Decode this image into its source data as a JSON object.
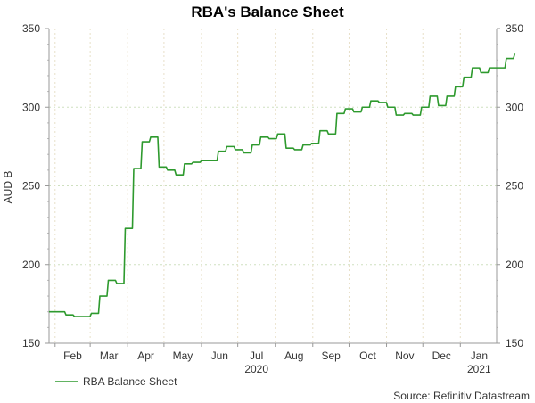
{
  "chart_data": {
    "type": "line",
    "title": "RBA's Balance Sheet",
    "ylabel": "AUD B",
    "xlabel": "",
    "ylim": [
      150,
      350
    ],
    "yticks": [
      150,
      200,
      250,
      300,
      350
    ],
    "x_range": [
      "2020-01-27",
      "2021-01-31"
    ],
    "month_labels": [
      {
        "label": "Feb",
        "start": "2020-02-01"
      },
      {
        "label": "Mar",
        "start": "2020-03-01"
      },
      {
        "label": "Apr",
        "start": "2020-04-01"
      },
      {
        "label": "May",
        "start": "2020-05-01"
      },
      {
        "label": "Jun",
        "start": "2020-06-01"
      },
      {
        "label": "Jul",
        "start": "2020-07-01"
      },
      {
        "label": "Aug",
        "start": "2020-08-01"
      },
      {
        "label": "Sep",
        "start": "2020-09-01"
      },
      {
        "label": "Oct",
        "start": "2020-10-01"
      },
      {
        "label": "Nov",
        "start": "2020-11-01"
      },
      {
        "label": "Dec",
        "start": "2020-12-01"
      },
      {
        "label": "Jan",
        "start": "2021-01-01"
      }
    ],
    "year_labels": [
      {
        "label": "2020",
        "month": "Jul"
      },
      {
        "label": "2021",
        "month": "Jan"
      }
    ],
    "grid": true,
    "series": [
      {
        "name": "RBA Balance Sheet",
        "color": "#2e9a2e",
        "start_date": "2020-01-27",
        "interval_days": 7,
        "values": [
          170,
          170,
          168,
          167,
          167,
          169,
          180,
          190,
          188,
          223,
          261,
          278,
          281,
          262,
          260,
          257,
          264,
          265,
          266,
          266,
          272,
          275,
          273,
          271,
          276,
          281,
          280,
          283,
          274,
          273,
          276,
          277,
          285,
          283,
          296,
          299,
          297,
          300,
          304,
          303,
          300,
          295,
          296,
          295,
          300,
          307,
          301,
          307,
          313,
          319,
          325,
          322,
          325,
          325,
          331,
          334
        ]
      }
    ],
    "legend": {
      "placement": "bottom-left",
      "label": "RBA Balance Sheet"
    },
    "source": "Source: Refinitiv Datastream"
  }
}
